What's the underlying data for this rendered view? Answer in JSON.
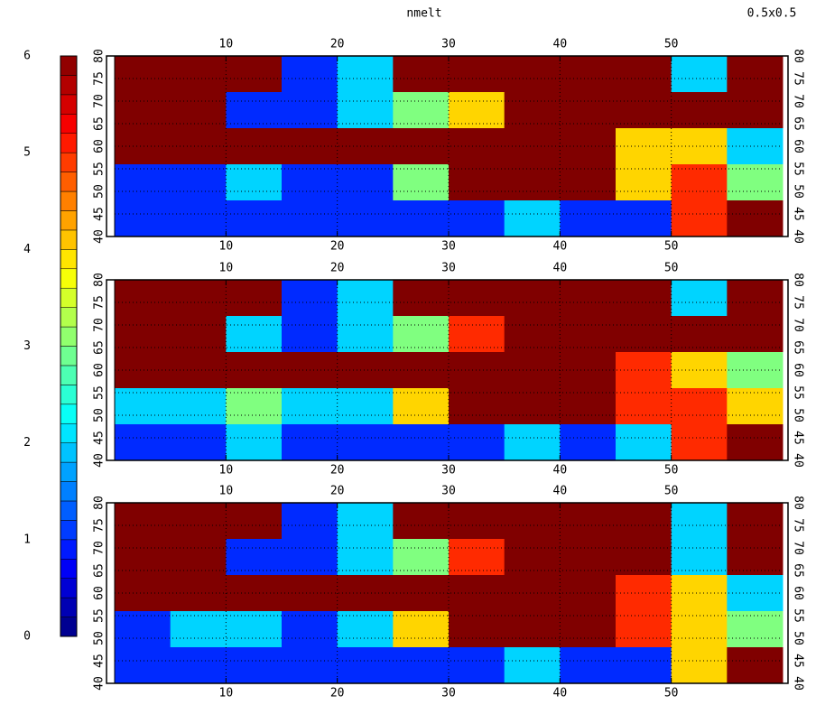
{
  "chart_data": [
    {
      "type": "heatmap",
      "title": "nmelt",
      "subtitle": "0.5x0.5",
      "colormap": "jet",
      "clim": [
        0,
        6
      ],
      "cticks": [
        0,
        1,
        2,
        3,
        4,
        5,
        6
      ],
      "xlim": [
        0,
        60
      ],
      "ylim": [
        40,
        80
      ],
      "xticks": [
        10,
        20,
        30,
        40,
        50
      ],
      "yticks": [
        40,
        45,
        50,
        55,
        60,
        65,
        70,
        75,
        80
      ],
      "grid": true,
      "values": [
        [
          6,
          6,
          6,
          1,
          2,
          6,
          6,
          6,
          6,
          6,
          2,
          6
        ],
        [
          6,
          6,
          1,
          1,
          2,
          3,
          4,
          6,
          6,
          6,
          6,
          6
        ],
        [
          6,
          6,
          6,
          6,
          6,
          6,
          6,
          6,
          6,
          4,
          4,
          2
        ],
        [
          1,
          1,
          2,
          1,
          1,
          3,
          6,
          6,
          6,
          4,
          5,
          3
        ],
        [
          1,
          1,
          1,
          1,
          1,
          1,
          1,
          2,
          1,
          1,
          5,
          6
        ]
      ]
    },
    {
      "type": "heatmap",
      "colormap": "jet",
      "clim": [
        0,
        6
      ],
      "xlim": [
        0,
        60
      ],
      "ylim": [
        40,
        80
      ],
      "xticks": [
        10,
        20,
        30,
        40,
        50
      ],
      "yticks": [
        40,
        45,
        50,
        55,
        60,
        65,
        70,
        75,
        80
      ],
      "grid": true,
      "values": [
        [
          6,
          6,
          6,
          1,
          2,
          6,
          6,
          6,
          6,
          6,
          2,
          6
        ],
        [
          6,
          6,
          2,
          1,
          2,
          3,
          5,
          6,
          6,
          6,
          6,
          6
        ],
        [
          6,
          6,
          6,
          6,
          6,
          6,
          6,
          6,
          6,
          5,
          4,
          3
        ],
        [
          2,
          2,
          3,
          2,
          2,
          4,
          6,
          6,
          6,
          5,
          5,
          4
        ],
        [
          1,
          1,
          2,
          1,
          1,
          1,
          1,
          2,
          1,
          2,
          5,
          6
        ]
      ]
    },
    {
      "type": "heatmap",
      "colormap": "jet",
      "clim": [
        0,
        6
      ],
      "xlim": [
        0,
        60
      ],
      "ylim": [
        40,
        80
      ],
      "xticks": [
        10,
        20,
        30,
        40,
        50
      ],
      "yticks": [
        40,
        45,
        50,
        55,
        60,
        65,
        70,
        75,
        80
      ],
      "grid": true,
      "values": [
        [
          6,
          6,
          6,
          1,
          2,
          6,
          6,
          6,
          6,
          6,
          2,
          6
        ],
        [
          6,
          6,
          1,
          1,
          2,
          3,
          5,
          6,
          6,
          6,
          2,
          6
        ],
        [
          6,
          6,
          6,
          6,
          6,
          6,
          6,
          6,
          6,
          5,
          4,
          2
        ],
        [
          1,
          2,
          2,
          1,
          2,
          4,
          6,
          6,
          6,
          5,
          4,
          3
        ],
        [
          1,
          1,
          1,
          1,
          1,
          1,
          1,
          2,
          1,
          1,
          4,
          6
        ]
      ]
    }
  ]
}
